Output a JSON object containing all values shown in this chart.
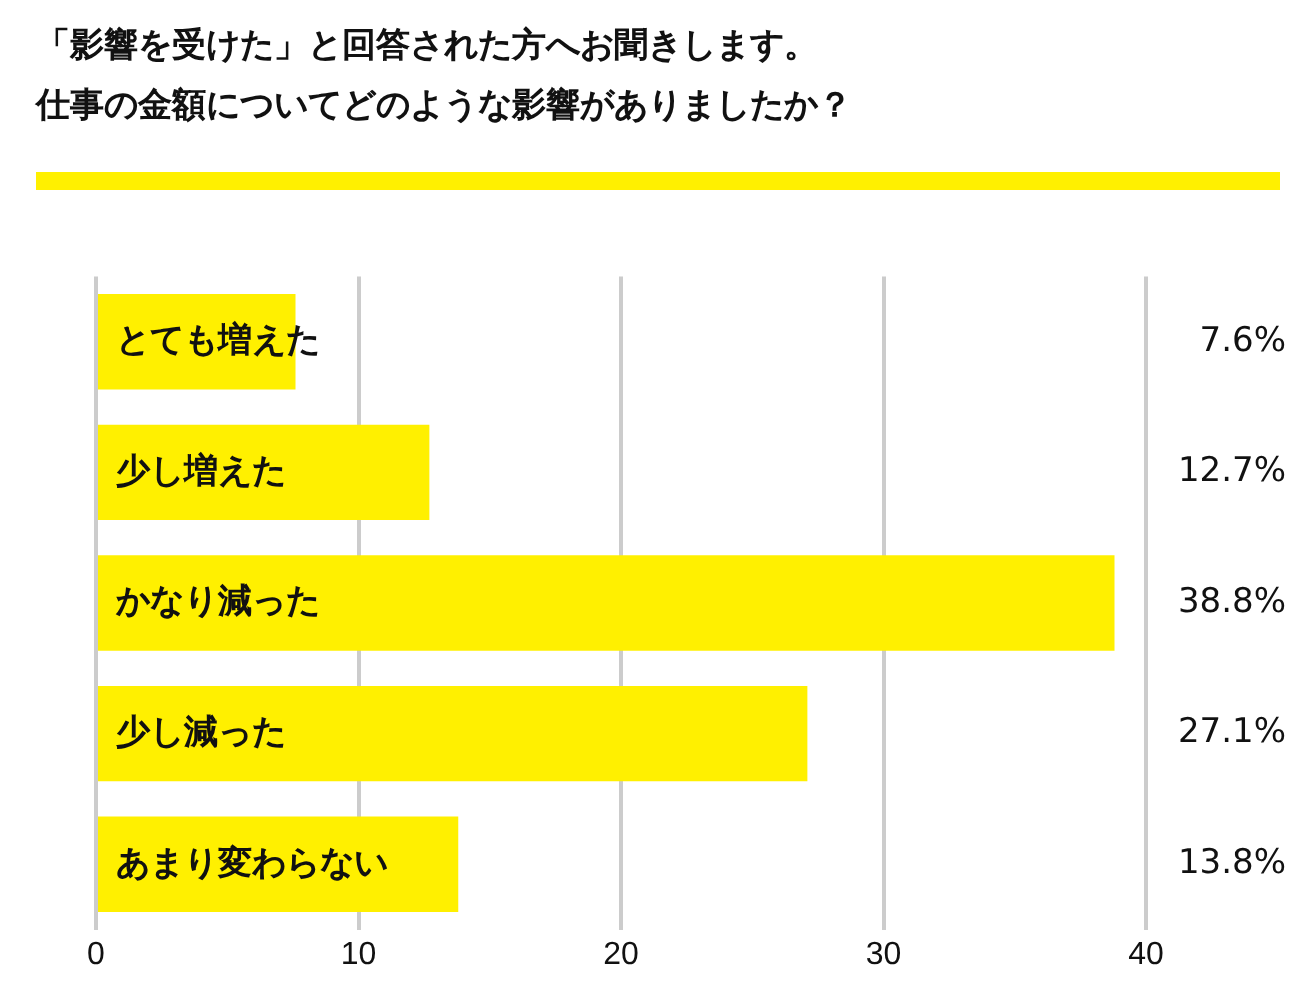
{
  "chart_data": {
    "type": "bar",
    "orientation": "horizontal",
    "title": "「影響を受けた」と回答された方へお聞きします。仕事の金額についてどのような影響がありましたか？",
    "categories": [
      "とても増えた",
      "少し増えた",
      "かなり減った",
      "少し減った",
      "あまり変わらない"
    ],
    "values": [
      7.6,
      12.7,
      38.8,
      27.1,
      13.8
    ],
    "value_labels": [
      "7.6%",
      "12.7%",
      "38.8%",
      "27.1%",
      "13.8%"
    ],
    "color": "#fff000",
    "xlim": [
      0,
      40
    ],
    "xticks": [
      0,
      10,
      20,
      30,
      40
    ],
    "grid": "x",
    "legend": false
  }
}
